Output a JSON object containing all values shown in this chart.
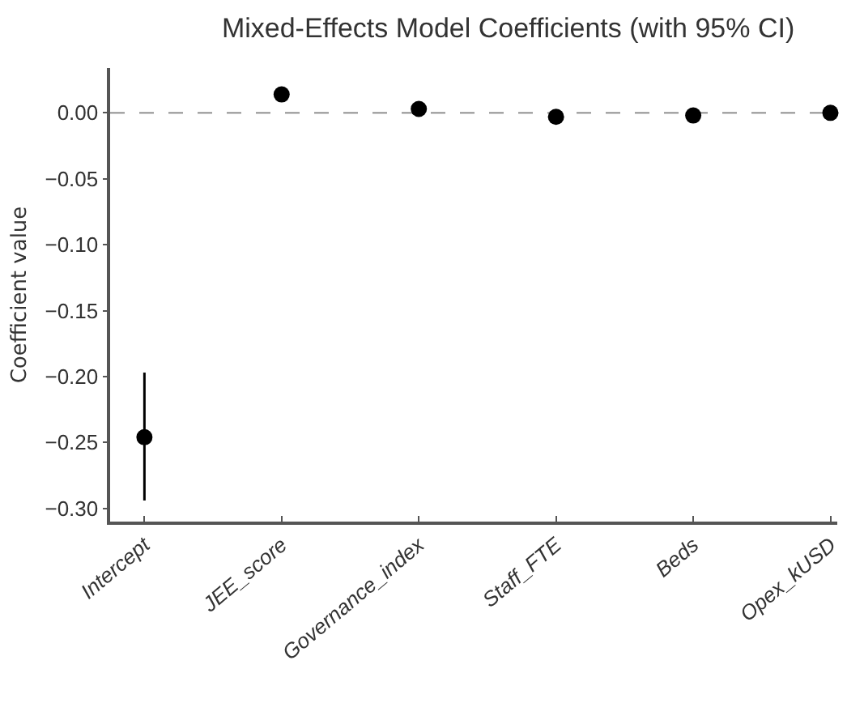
{
  "chart_data": {
    "type": "scatter",
    "title": "Mixed-Effects Model Coefficients (with 95% CI)",
    "ylabel": "Coefficient value",
    "categories": [
      "Intercept",
      "JEE_score",
      "Governance_index",
      "Staff_FTE",
      "Beds",
      "Opex_kUSD"
    ],
    "series": [
      {
        "color": "#000000",
        "values": [
          -0.246,
          0.014,
          0.003,
          -0.003,
          -0.002,
          0.0
        ],
        "errors": [
          [
            -0.294,
            -0.197
          ],
          null,
          null,
          null,
          null,
          null
        ]
      }
    ],
    "marker": "circle",
    "ylim": [
      -0.31,
      0.034
    ],
    "yticks": [
      {
        "value": 0,
        "label": "0.00"
      },
      {
        "value": -0.05,
        "label": "−0.05"
      },
      {
        "value": -0.1,
        "label": "−0.10"
      },
      {
        "value": -0.15,
        "label": "−0.15"
      },
      {
        "value": -0.2,
        "label": "−0.20"
      },
      {
        "value": -0.25,
        "label": "−0.25"
      },
      {
        "value": -0.3,
        "label": "−0.30"
      }
    ],
    "ref_lines": [
      {
        "axis": "y",
        "value": 0,
        "color": "#808080",
        "line_style": "dashed"
      }
    ],
    "grid": false
  }
}
